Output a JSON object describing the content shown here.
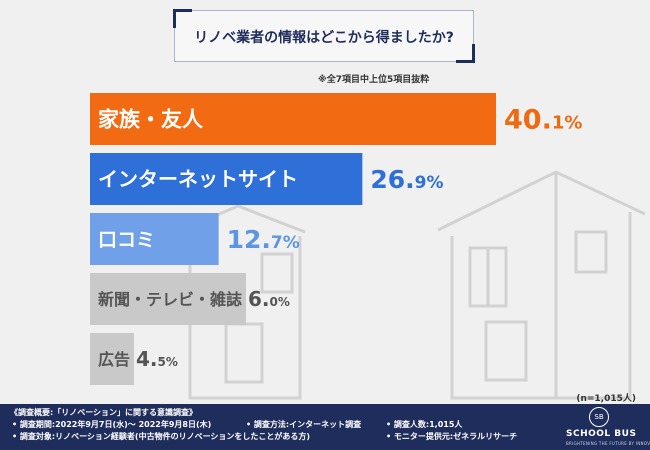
{
  "title": "リノベ業者の情報はどこから得ましたか?",
  "note": "※全7項目中上位5項目抜粋",
  "sample_size": "(n=1,015人)",
  "chart_data": {
    "type": "bar",
    "orientation": "horizontal",
    "categories": [
      "家族・友人",
      "インターネットサイト",
      "口コミ",
      "新聞・テレビ・雑誌",
      "広告"
    ],
    "values": [
      40.1,
      26.9,
      12.7,
      6.0,
      4.5
    ],
    "value_labels": [
      {
        "int": "40.",
        "dec": "1%"
      },
      {
        "int": "26.",
        "dec": "9%"
      },
      {
        "int": "12.",
        "dec": "7%"
      },
      {
        "int": "6.",
        "dec": "0%"
      },
      {
        "int": "4.",
        "dec": "5%"
      }
    ],
    "unit": "%",
    "colors": [
      "#f26b12",
      "#2f6fd8",
      "#6fa0e8",
      "#c9c9c9",
      "#c9c9c9"
    ],
    "label_colors": [
      "#ffffff",
      "#ffffff",
      "#ffffff",
      "#555555",
      "#555555"
    ],
    "value_colors": [
      "#ef6a10",
      "#2f6fd8",
      "#5d95e2",
      "#555555",
      "#555555"
    ]
  },
  "footer": {
    "heading": "《調査概要:「リノベーション」に関する意識調査》",
    "period": "• 調査期間:2022年9月7日(水)〜 2022年9月8日(木)",
    "target": "• 調査対象:リノベーション経験者(中古物件のリノベーションをしたことがある方)",
    "method": "• 調査方法:インターネット調査",
    "people": "• 調査人数:1,015人",
    "provider": "• モニター提供元:ゼネラルリサーチ",
    "logo_mark": "SB",
    "logo_name": "SCHOOL BUS",
    "logo_sub": "BRIGHTENING THE FUTURE BY INNOVATION"
  }
}
